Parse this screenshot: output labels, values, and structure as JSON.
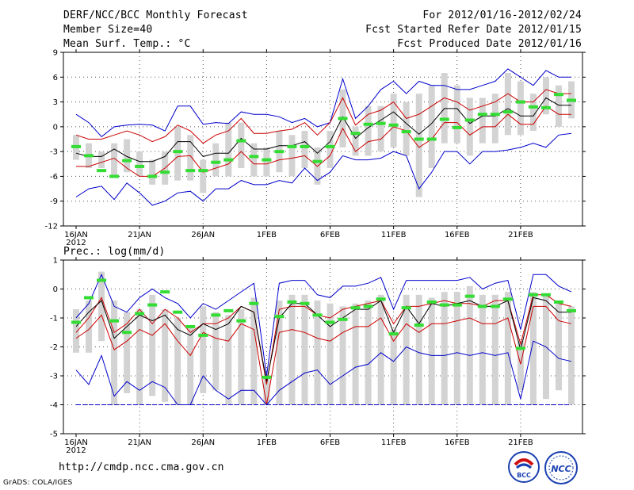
{
  "header": {
    "title": "DERF/NCC/BCC Monthly Forecast",
    "member_size": "Member Size=40",
    "variable1": "Mean Surf. Temp.: °C",
    "for_period": "For 2012/01/16-2012/02/24",
    "started": "Fcst Started Refer Date 2012/01/15",
    "produced": "Fcst Produced Date 2012/01/16"
  },
  "footer": {
    "url": "http://cmdp.ncc.cma.gov.cn",
    "grads": "GrADS: COLA/IGES",
    "logo_left_text": "BCC",
    "logo_right_text": "NCC"
  },
  "colors": {
    "envelope": "#0000cc",
    "spread": "#cc0000",
    "mean": "#000000",
    "box": "#d3d3d3",
    "median": "#33dd33",
    "grid": "#000000"
  },
  "chart_data": [
    {
      "type": "line",
      "title": "Mean Surf. Temp.: °C",
      "xlabel": "",
      "ylabel": "°C",
      "ylim": [
        -12,
        9
      ],
      "yticks": [
        "9",
        "6",
        "3",
        "0",
        "-3",
        "-6",
        "-9",
        "-12"
      ],
      "xtick_labels": [
        "16JAN",
        "21JAN",
        "26JAN",
        "1FEB",
        "6FEB",
        "11FEB",
        "16FEB",
        "21FEB"
      ],
      "xtick_year": "2012",
      "days": 40,
      "series": [
        {
          "name": "max",
          "values": [
            1.5,
            0.5,
            -1.2,
            0,
            0.2,
            0.3,
            0.2,
            -0.5,
            2.5,
            2.5,
            0.3,
            0.5,
            0.4,
            1.8,
            1.5,
            1.5,
            1.2,
            0.5,
            1,
            0,
            0.5,
            5.8,
            1,
            2.5,
            4.5,
            5.5,
            4,
            5.5,
            5,
            5,
            4.5,
            4.5,
            5,
            5.5,
            7,
            6,
            5,
            6.8,
            6,
            6
          ]
        },
        {
          "name": "upper",
          "values": [
            -1,
            -1.5,
            -1.5,
            -1,
            -0.5,
            -1,
            -1.8,
            -1.2,
            0.2,
            -0.5,
            -2,
            -1,
            -0.5,
            1,
            -0.8,
            -0.8,
            -0.5,
            -0.3,
            0.5,
            -1,
            0.5,
            3.5,
            0.2,
            1.5,
            2,
            3,
            1,
            1.5,
            2.5,
            3.5,
            3,
            2,
            2.5,
            3,
            4,
            3,
            3,
            4.5,
            4,
            4
          ]
        },
        {
          "name": "mean",
          "values": [
            -3.2,
            -3.6,
            -3.6,
            -2.7,
            -3.6,
            -4.2,
            -4.2,
            -3.6,
            -1.8,
            -1.8,
            -3.6,
            -3.2,
            -3.2,
            -1.4,
            -2.7,
            -2.7,
            -2.3,
            -2.3,
            -1.8,
            -3.2,
            -1.8,
            1.2,
            -1.4,
            -0.1,
            0.8,
            1.8,
            0.4,
            -0.9,
            0.4,
            2.2,
            2.2,
            0.4,
            1.3,
            1.3,
            2.2,
            1.3,
            1.3,
            3.5,
            2.6,
            2.6
          ]
        },
        {
          "name": "lower",
          "values": [
            -4.8,
            -4.8,
            -4.3,
            -3.8,
            -5,
            -6,
            -6,
            -5,
            -3.6,
            -3.5,
            -5.5,
            -5,
            -4.5,
            -3,
            -4.5,
            -4.5,
            -4,
            -3.8,
            -3.5,
            -4.8,
            -3.5,
            -0.2,
            -3,
            -1.8,
            -1.5,
            0,
            -0.5,
            -2.5,
            -1.5,
            0.5,
            0.5,
            -1,
            0,
            0,
            1.5,
            0.3,
            0.3,
            2.5,
            1.5,
            1.5
          ]
        },
        {
          "name": "min",
          "values": [
            -8.5,
            -7.5,
            -7.2,
            -8.8,
            -6.8,
            -8,
            -9.5,
            -9,
            -8,
            -7.8,
            -9,
            -7.5,
            -7.5,
            -6.5,
            -7,
            -7,
            -6.5,
            -6.8,
            -5,
            -6.5,
            -5.5,
            -3.5,
            -4,
            -4,
            -3.8,
            -3,
            -3.5,
            -7.5,
            -5.5,
            -3,
            -3,
            -4.5,
            -3,
            -3,
            -2.8,
            -2.5,
            -2,
            -2.5,
            -1,
            -0.8
          ]
        }
      ],
      "box_low": [
        -4,
        -5,
        -5,
        -6,
        -5.5,
        -6,
        -7,
        -7,
        -6.5,
        -6.5,
        -8,
        -6,
        -6,
        -5,
        -6,
        -6,
        -5.5,
        -6,
        -5,
        -7,
        -5,
        -2.5,
        -3.5,
        -3.5,
        -3,
        -2.5,
        -3.5,
        -8.5,
        -5,
        -2,
        -2,
        -3.5,
        -2,
        -2,
        -1,
        -1,
        -0.5,
        1.5,
        0,
        1
      ],
      "box_high": [
        -1,
        -2,
        -3,
        -2,
        -1.5,
        -3,
        -4,
        -3,
        0,
        -1,
        -4,
        -2,
        0.5,
        0.5,
        -2,
        -2.5,
        -0.5,
        -1,
        -0.5,
        -2.5,
        -0.5,
        4.5,
        0,
        2.5,
        2.5,
        4,
        3,
        4,
        5,
        6.5,
        5,
        3.5,
        3.5,
        4,
        6.5,
        5.5,
        4,
        6,
        5,
        5.5
      ],
      "median": [
        -2.4,
        -3.5,
        -5.3,
        -6,
        -4.1,
        -4.8,
        -6,
        -5.5,
        -3,
        -5.3,
        -5.3,
        -4.3,
        -4,
        -1.7,
        -3.6,
        -4,
        -3,
        -2.4,
        -2.4,
        -4.2,
        -2.4,
        1,
        -0.8,
        0.3,
        0.4,
        0.2,
        -0.6,
        -1.5,
        -1.5,
        0.9,
        -0.1,
        0.8,
        1.5,
        1.5,
        1.8,
        3,
        2.4,
        2.3,
        3.9,
        3.2
      ]
    },
    {
      "type": "line",
      "title": "Prec.: log(mm/d)",
      "xlabel": "",
      "ylabel": "log(mm/d)",
      "ylim": [
        -5,
        1
      ],
      "yticks": [
        "1",
        "0",
        "-1",
        "-2",
        "-3",
        "-4",
        "-5"
      ],
      "xtick_labels": [
        "16JAN",
        "21JAN",
        "26JAN",
        "1FEB",
        "6FEB",
        "11FEB",
        "16FEB",
        "21FEB"
      ],
      "xtick_year": "2012",
      "days": 40,
      "series": [
        {
          "name": "max",
          "values": [
            -1,
            -0.5,
            0.5,
            -0.6,
            -0.8,
            -0.3,
            0,
            -0.3,
            -0.5,
            -1,
            -0.5,
            -0.7,
            -0.4,
            -0.1,
            0.2,
            -3,
            0.2,
            0.3,
            0.3,
            -0.2,
            -0.3,
            0.1,
            0.1,
            0.2,
            0.4,
            -0.7,
            0.3,
            0.3,
            0.3,
            0.3,
            0.3,
            0.4,
            0,
            0.2,
            0.3,
            -1.4,
            0.5,
            0.5,
            0.1,
            -0.1
          ]
        },
        {
          "name": "upper",
          "values": [
            -1.5,
            -1,
            -0.3,
            -1.5,
            -1.2,
            -0.7,
            -1.2,
            -0.7,
            -1,
            -1.5,
            -1.2,
            -1.2,
            -1,
            -0.6,
            -0.8,
            -3.3,
            -0.7,
            -0.6,
            -0.6,
            -0.9,
            -1,
            -0.7,
            -0.6,
            -0.5,
            -0.4,
            -1.2,
            -0.6,
            -0.6,
            -0.5,
            -0.4,
            -0.5,
            -0.5,
            -0.6,
            -0.4,
            -0.4,
            -1.9,
            -0.2,
            -0.2,
            -0.5,
            -0.6
          ]
        },
        {
          "name": "mean",
          "values": [
            -1.3,
            -0.8,
            -0.4,
            -1.7,
            -1.3,
            -0.9,
            -1.1,
            -0.9,
            -1.4,
            -1.6,
            -1.2,
            -1.4,
            -1.2,
            -0.6,
            -0.8,
            -3.2,
            -1,
            -0.5,
            -0.5,
            -0.9,
            -1.3,
            -1,
            -0.7,
            -0.7,
            -0.4,
            -1.5,
            -0.6,
            -1.2,
            -0.5,
            -0.6,
            -0.5,
            -0.4,
            -0.6,
            -0.6,
            -0.4,
            -2.1,
            -0.3,
            -0.4,
            -0.8,
            -0.8
          ]
        },
        {
          "name": "lower",
          "values": [
            -1.7,
            -1.4,
            -0.9,
            -2.1,
            -1.8,
            -1.4,
            -1.6,
            -1.2,
            -1.8,
            -2.3,
            -1.5,
            -1.7,
            -1.8,
            -1.2,
            -1.4,
            -4,
            -1.5,
            -1.4,
            -1.5,
            -1.7,
            -1.8,
            -1.5,
            -1.3,
            -1.3,
            -1,
            -1.8,
            -1.2,
            -1.5,
            -1.2,
            -1.2,
            -1.1,
            -1,
            -1.2,
            -1.2,
            -1,
            -2.6,
            -0.6,
            -0.6,
            -1.1,
            -1.2
          ]
        },
        {
          "name": "min",
          "values": [
            -2.8,
            -3.3,
            -2.3,
            -3.7,
            -3.2,
            -3.5,
            -3.2,
            -3.4,
            -4,
            -4,
            -3,
            -3.5,
            -3.8,
            -3.5,
            -3.5,
            -4,
            -3.5,
            -3.2,
            -2.9,
            -2.8,
            -3.3,
            -3,
            -2.7,
            -2.6,
            -2.2,
            -2.5,
            -2,
            -2.2,
            -2.3,
            -2.3,
            -2.2,
            -2.3,
            -2.2,
            -2.3,
            -2.2,
            -3.8,
            -1.8,
            -2,
            -2.4,
            -2.5
          ]
        },
        {
          "name": "floor",
          "values": [
            -4,
            -4
          ]
        }
      ],
      "box_low": [
        -2.2,
        -2.2,
        -1.8,
        -4,
        -3.6,
        -4,
        -3.7,
        -3.9,
        -4,
        -4,
        -3.6,
        -3.5,
        -4,
        -4,
        -4,
        -4,
        -4,
        -4,
        -4,
        -4,
        -4,
        -4,
        -4,
        -4,
        -4,
        -4,
        -4,
        -4,
        -4,
        -4,
        -4,
        -4,
        -4,
        -4,
        -4,
        -3.5,
        -4,
        -3.8,
        -3.5,
        -4
      ],
      "box_high": [
        -0.7,
        -0.4,
        0.6,
        -0.4,
        -0.8,
        -0.7,
        -0.2,
        -0.7,
        -1,
        -1.3,
        -0.6,
        -0.8,
        -0.9,
        -0.7,
        -0.3,
        -3,
        -0.4,
        -0.2,
        -0.2,
        -0.4,
        -0.5,
        -0.6,
        -0.5,
        -0.4,
        -0.2,
        -1.4,
        -0.2,
        -0.2,
        -0.3,
        -0.1,
        -0.1,
        0.1,
        -0.2,
        -0.2,
        -0.1,
        -1.8,
        -0.1,
        -0.2,
        -0.5,
        -0.6
      ],
      "median": [
        -1.15,
        -0.3,
        0.3,
        -1.1,
        -1.5,
        -0.85,
        -0.55,
        -0.1,
        -0.8,
        -1.3,
        -1.6,
        -0.9,
        -0.75,
        -1.1,
        -0.5,
        -3.05,
        -0.95,
        -0.45,
        -0.5,
        -0.9,
        -1.15,
        -1.05,
        -0.65,
        -0.6,
        -0.35,
        -1.55,
        -0.65,
        -1.25,
        -0.45,
        -0.55,
        -0.55,
        -0.25,
        -0.6,
        -0.6,
        -0.35,
        -2.05,
        -0.2,
        -0.2,
        -0.45,
        -0.75
      ]
    }
  ]
}
